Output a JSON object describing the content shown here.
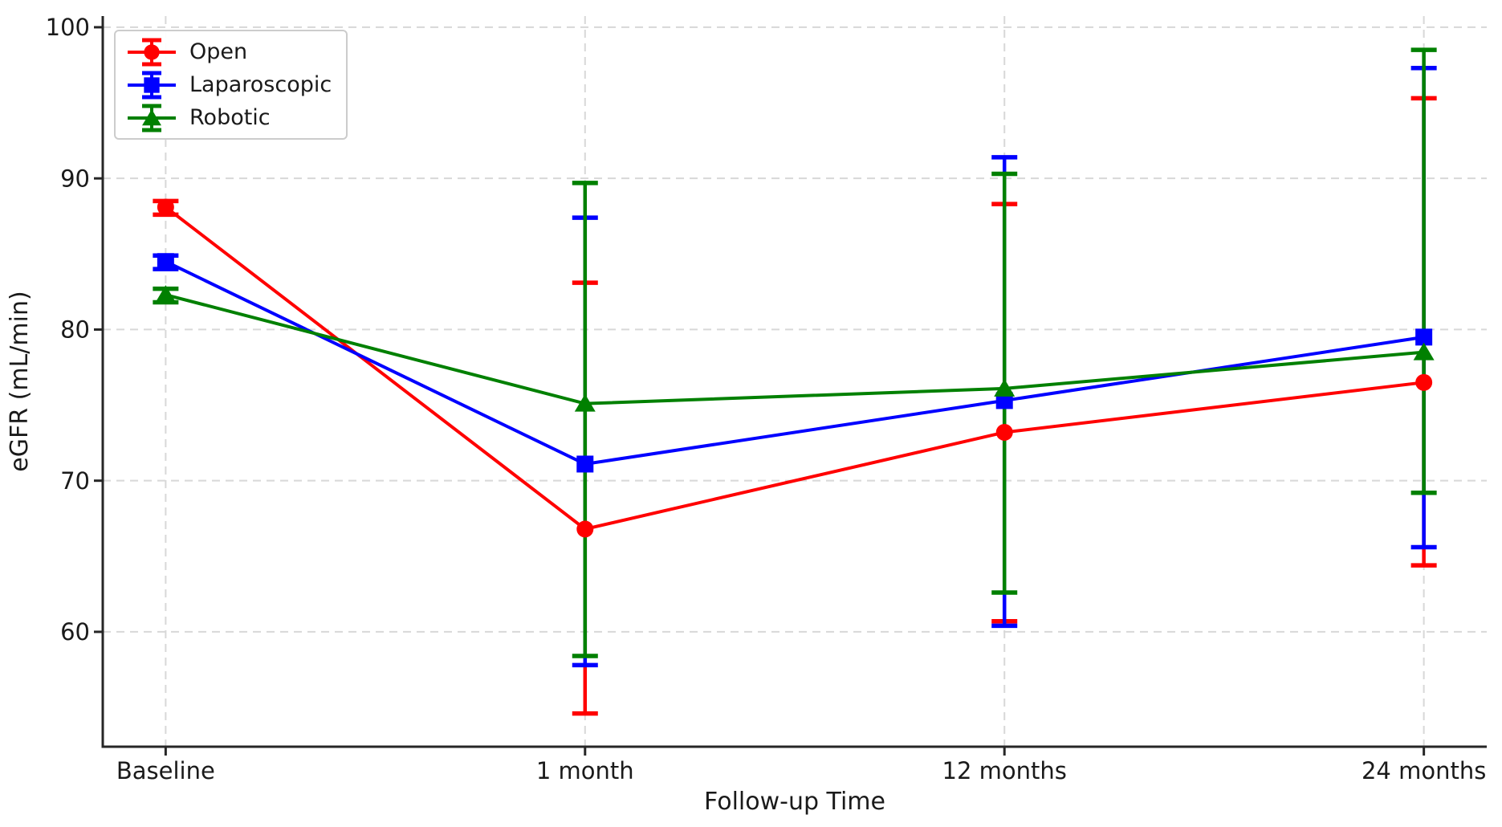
{
  "chart_data": {
    "type": "line",
    "title": "",
    "xlabel": "Follow-up Time",
    "ylabel": "eGFR (mL/min)",
    "categories": [
      "Baseline",
      "1 month",
      "12 months",
      "24 months"
    ],
    "y_ticks": [
      60,
      70,
      80,
      90,
      100
    ],
    "ylim": [
      52.4,
      100.74
    ],
    "xlim": [
      -0.15,
      3.15
    ],
    "grid": "dashed, both axes, light gray",
    "legend_position": "upper left",
    "error_bars": "asymmetric, with caps",
    "series": [
      {
        "name": "Open",
        "color": "#ff0000",
        "marker": "circle",
        "values": [
          88.1,
          66.8,
          73.2,
          76.5
        ],
        "err_upper_abs": [
          88.5,
          83.1,
          88.3,
          95.3
        ],
        "err_lower_abs": [
          87.6,
          54.6,
          60.7,
          64.4
        ]
      },
      {
        "name": "Laparoscopic",
        "color": "#0000ff",
        "marker": "square",
        "values": [
          84.5,
          71.1,
          75.3,
          79.5
        ],
        "err_upper_abs": [
          84.9,
          87.4,
          91.4,
          97.3
        ],
        "err_lower_abs": [
          84.0,
          57.8,
          60.4,
          65.6
        ]
      },
      {
        "name": "Robotic",
        "color": "#008000",
        "marker": "triangle",
        "values": [
          82.3,
          75.1,
          76.1,
          78.5
        ],
        "err_upper_abs": [
          82.7,
          89.7,
          90.3,
          98.5
        ],
        "err_lower_abs": [
          81.8,
          58.4,
          62.6,
          69.2
        ]
      }
    ]
  },
  "style": {
    "grid_color": "#d8d8d8",
    "spine_color": "#262626",
    "text_color": "#1a1a1a",
    "legend_border_color": "#cccccc",
    "background": "#ffffff"
  }
}
